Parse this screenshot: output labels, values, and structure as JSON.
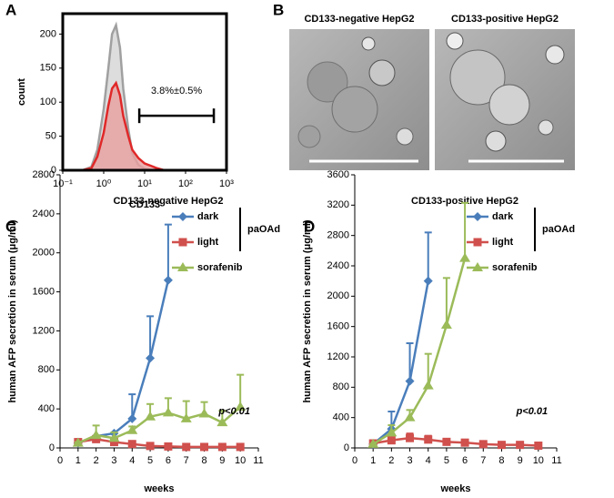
{
  "panel_labels": [
    "A",
    "B",
    "C",
    "D"
  ],
  "images": {
    "left_title": "CD133-negative HepG2",
    "right_title": "CD133-positive HepG2"
  },
  "chart_data": [
    {
      "type": "area",
      "xscale": "log",
      "xlabel": "CD133",
      "ylabel": "count",
      "xlim": [
        0.1,
        1000
      ],
      "ylim": [
        0,
        230
      ],
      "xticks": [
        {
          "value": 0.1,
          "label": "10⁻¹"
        },
        {
          "value": 1,
          "label": "10⁰"
        },
        {
          "value": 10,
          "label": "10¹"
        },
        {
          "value": 100,
          "label": "10²"
        },
        {
          "value": 1000,
          "label": "10³"
        }
      ],
      "yticks": [
        0,
        50,
        100,
        150,
        200
      ],
      "x": [
        0.3,
        0.5,
        0.7,
        1,
        1.3,
        1.6,
        2,
        2.5,
        3,
        4,
        5,
        7,
        10,
        15,
        20,
        30
      ],
      "series": [
        {
          "color": "#a0a0a0",
          "fill": "#d4d4d4",
          "values": [
            0,
            5,
            30,
            90,
            150,
            200,
            213,
            180,
            120,
            60,
            25,
            8,
            2,
            0,
            0,
            0
          ]
        },
        {
          "color": "#e02828",
          "fill": "#e8a0a0",
          "values": [
            0,
            3,
            20,
            55,
            95,
            120,
            128,
            110,
            80,
            50,
            30,
            18,
            10,
            6,
            3,
            0
          ]
        }
      ],
      "gate": {
        "x": [
          7.4,
          490
        ],
        "y": 80
      },
      "annotation": "3.8%±0.5%"
    },
    {
      "type": "line",
      "title": "CD133-negative HepG2",
      "xlabel": "weeks",
      "ylabel": "human AFP secretion in serum (μg/ml)",
      "xlim": [
        0,
        11
      ],
      "xticks": [
        0,
        1,
        2,
        3,
        4,
        5,
        6,
        7,
        8,
        9,
        10,
        11
      ],
      "ylim": [
        0,
        2800
      ],
      "yticks": [
        0,
        400,
        800,
        1200,
        1600,
        2000,
        2400,
        2800
      ],
      "series": [
        {
          "name": "dark",
          "color": "#4a7ebb",
          "marker": "diamond",
          "x": [
            1,
            2,
            3,
            4,
            5,
            6
          ],
          "values": [
            50,
            120,
            150,
            300,
            920,
            1720
          ],
          "errors": [
            0,
            0,
            0,
            250,
            430,
            570
          ]
        },
        {
          "name": "light",
          "color": "#d0504d",
          "marker": "square",
          "x": [
            1,
            2,
            3,
            4,
            5,
            6,
            7,
            8,
            9,
            10
          ],
          "values": [
            60,
            90,
            60,
            40,
            20,
            15,
            10,
            10,
            10,
            10
          ],
          "errors": [
            20,
            20,
            30,
            10,
            10,
            5,
            5,
            5,
            5,
            5
          ]
        },
        {
          "name": "sorafenib",
          "color": "#9bbb59",
          "marker": "triangle",
          "x": [
            1,
            2,
            3,
            4,
            5,
            6,
            7,
            8,
            9,
            10
          ],
          "values": [
            50,
            130,
            100,
            180,
            320,
            360,
            300,
            350,
            260,
            420
          ],
          "errors": [
            10,
            100,
            60,
            40,
            130,
            150,
            180,
            120,
            120,
            330
          ]
        }
      ],
      "group_label": "paOAd",
      "annotation": "p<0.01"
    },
    {
      "type": "line",
      "title": "CD133-positive HepG2",
      "xlabel": "weeks",
      "ylabel": "human AFP secretion in serum (μg/ml)",
      "xlim": [
        0,
        11
      ],
      "xticks": [
        0,
        1,
        2,
        3,
        4,
        5,
        6,
        7,
        8,
        9,
        10,
        11
      ],
      "ylim": [
        0,
        3600
      ],
      "yticks": [
        0,
        400,
        800,
        1200,
        1600,
        2000,
        2400,
        2800,
        3200,
        3600
      ],
      "series": [
        {
          "name": "dark",
          "color": "#4a7ebb",
          "marker": "diamond",
          "x": [
            1,
            2,
            3,
            4
          ],
          "values": [
            50,
            250,
            880,
            2200
          ],
          "errors": [
            0,
            230,
            500,
            640
          ]
        },
        {
          "name": "light",
          "color": "#d0504d",
          "marker": "square",
          "x": [
            1,
            2,
            3,
            4,
            5,
            6,
            7,
            8,
            9,
            10
          ],
          "values": [
            60,
            100,
            130,
            110,
            80,
            70,
            50,
            40,
            40,
            30
          ],
          "errors": [
            20,
            40,
            60,
            50,
            30,
            20,
            20,
            10,
            20,
            10
          ]
        },
        {
          "name": "sorafenib",
          "color": "#9bbb59",
          "marker": "triangle",
          "x": [
            1,
            2,
            3,
            4,
            5,
            6
          ],
          "values": [
            50,
            200,
            400,
            820,
            1620,
            2500
          ],
          "errors": [
            0,
            100,
            100,
            420,
            620,
            730
          ]
        }
      ],
      "group_label": "paOAd",
      "annotation": "p<0.01"
    }
  ]
}
